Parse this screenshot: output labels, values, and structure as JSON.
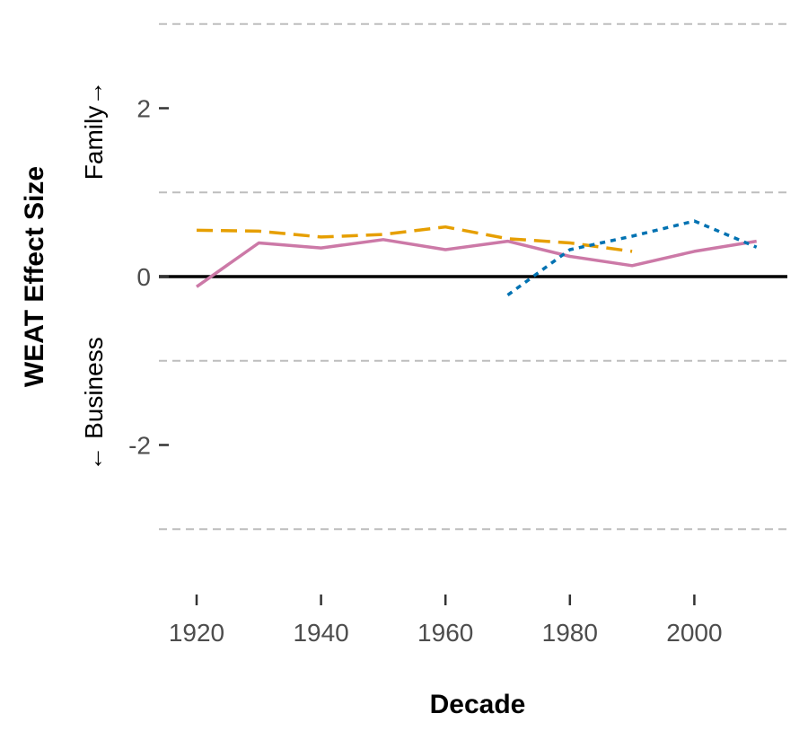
{
  "chart_data": {
    "type": "line",
    "xlabel": "Decade",
    "ylabel": "WEAT Effect Size",
    "y_direction_labels": {
      "positive": "Family→",
      "negative": "← Business"
    },
    "xlim": [
      1915,
      2015
    ],
    "ylim": [
      -3.5,
      3.0
    ],
    "x_ticks": [
      1920,
      1940,
      1960,
      1980,
      2000
    ],
    "y_ticks": [
      -2,
      0,
      2
    ],
    "y_minor_gridlines": [
      -3,
      -1,
      1,
      3
    ],
    "grid": "horizontal dashed",
    "legend": "none",
    "reference_line": 0,
    "series": [
      {
        "color": "#e69f00",
        "dash": "dashed",
        "x": [
          1920,
          1930,
          1940,
          1950,
          1960,
          1970,
          1980,
          1990
        ],
        "y": [
          0.55,
          0.54,
          0.47,
          0.5,
          0.59,
          0.45,
          0.4,
          0.3
        ]
      },
      {
        "color": "#cc79a7",
        "dash": "solid",
        "x": [
          1920,
          1930,
          1940,
          1950,
          1960,
          1970,
          1980,
          1990,
          2000,
          2010
        ],
        "y": [
          -0.12,
          0.4,
          0.34,
          0.44,
          0.32,
          0.42,
          0.24,
          0.13,
          0.3,
          0.42
        ]
      },
      {
        "color": "#0072b2",
        "dash": "dotted",
        "x": [
          1970,
          1980,
          1990,
          2000,
          2010
        ],
        "y": [
          -0.22,
          0.32,
          0.48,
          0.66,
          0.35
        ]
      }
    ]
  }
}
